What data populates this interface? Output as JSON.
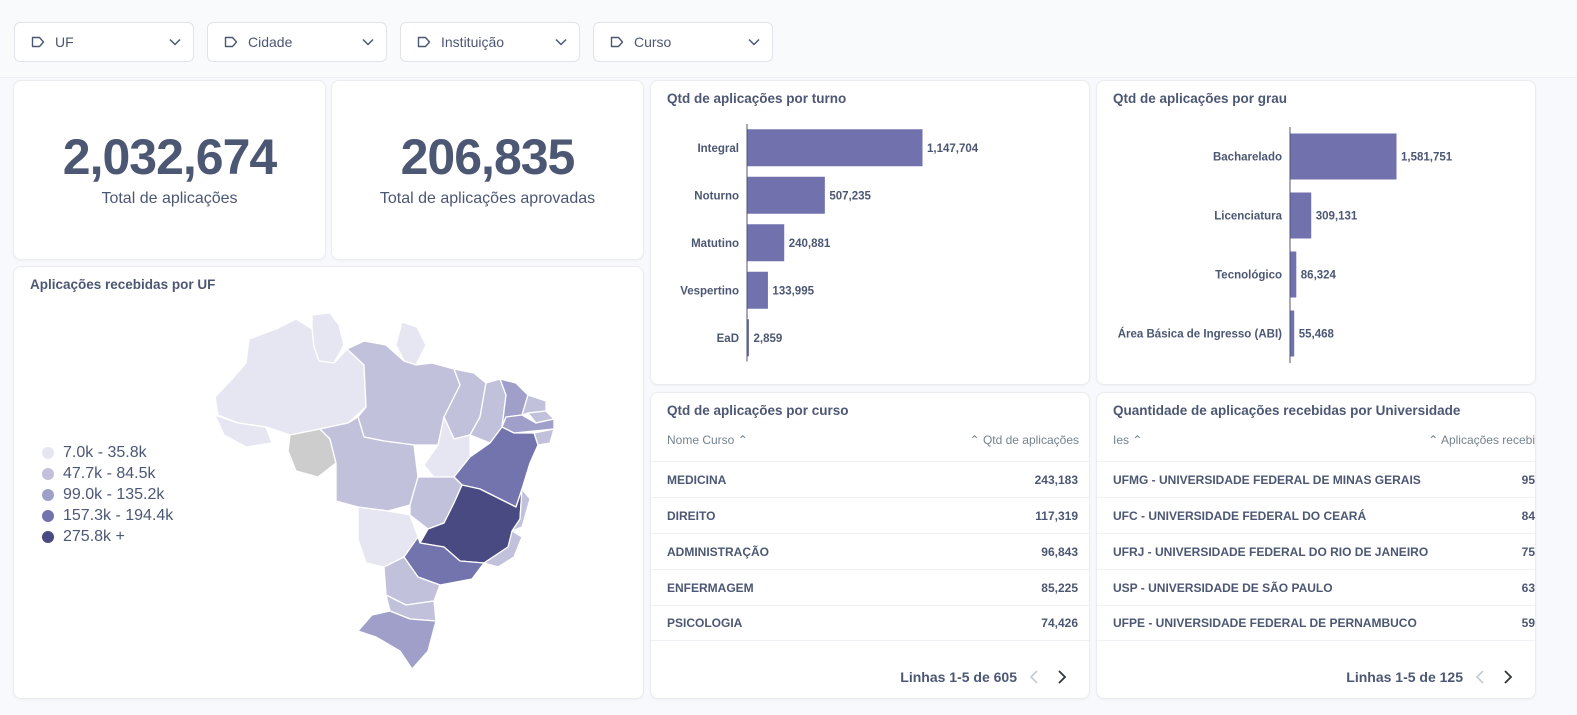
{
  "filters": [
    {
      "label": "UF"
    },
    {
      "label": "Cidade"
    },
    {
      "label": "Instituição"
    },
    {
      "label": "Curso"
    }
  ],
  "scalar_total": {
    "value": "2,032,674",
    "caption": "Total de aplicações"
  },
  "scalar_approved": {
    "value": "206,835",
    "caption": "Total de aplicações aprovadas"
  },
  "map": {
    "title": "Aplicações recebidas por UF",
    "legend": [
      {
        "label": "7.0k - 35.8k",
        "color": "#e6e6f2"
      },
      {
        "label": "47.7k - 84.5k",
        "color": "#c1c1dc"
      },
      {
        "label": "99.0k - 135.2k",
        "color": "#9f9fc9"
      },
      {
        "label": "157.3k - 194.4k",
        "color": "#7373ad"
      },
      {
        "label": "275.8k +",
        "color": "#4a4a82"
      }
    ]
  },
  "chart_data": [
    {
      "type": "bar",
      "orientation": "horizontal",
      "title": "Qtd de aplicações por turno",
      "categories": [
        "Integral",
        "Noturno",
        "Matutino",
        "Vespertino",
        "EaD"
      ],
      "values": [
        1147704,
        507235,
        240881,
        133995,
        2859
      ],
      "value_labels": [
        "1,147,704",
        "507,235",
        "240,881",
        "133,995",
        "2,859"
      ],
      "color": "#7172ad"
    },
    {
      "type": "bar",
      "orientation": "horizontal",
      "title": "Qtd de aplicações por grau",
      "categories": [
        "Bacharelado",
        "Licenciatura",
        "Tecnológico",
        "Área Básica de Ingresso (ABI)"
      ],
      "values": [
        1581751,
        309131,
        86324,
        55468
      ],
      "value_labels": [
        "1,581,751",
        "309,131",
        "86,324",
        "55,468"
      ],
      "color": "#7172ad"
    }
  ],
  "course_table": {
    "title": "Qtd de aplicações por curso",
    "col1": "Nome Curso",
    "col2": "Qtd de aplicações",
    "rows": [
      {
        "name": "MEDICINA",
        "value": "243,183"
      },
      {
        "name": "DIREITO",
        "value": "117,319"
      },
      {
        "name": "ADMINISTRAÇÃO",
        "value": "96,843"
      },
      {
        "name": "ENFERMAGEM",
        "value": "85,225"
      },
      {
        "name": "PSICOLOGIA",
        "value": "74,426"
      }
    ],
    "pager": "Linhas 1-5 de 605"
  },
  "uni_table": {
    "title": "Quantidade de aplicações recebidas por Universidade",
    "col1": "Ies",
    "col2": "Aplicações recebi",
    "rows": [
      {
        "name": "UFMG - UNIVERSIDADE FEDERAL DE MINAS GERAIS",
        "value": "95"
      },
      {
        "name": "UFC - UNIVERSIDADE FEDERAL DO CEARÁ",
        "value": "84"
      },
      {
        "name": "UFRJ - UNIVERSIDADE FEDERAL DO RIO DE JANEIRO",
        "value": "75"
      },
      {
        "name": "USP - UNIVERSIDADE DE SÃO PAULO",
        "value": "63"
      },
      {
        "name": "UFPE - UNIVERSIDADE FEDERAL DE PERNAMBUCO",
        "value": "59"
      }
    ],
    "pager": "Linhas 1-5 de 125"
  }
}
